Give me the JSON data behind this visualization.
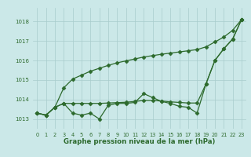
{
  "title": "Graphe pression niveau de la mer (hPa)",
  "background_color": "#cbe8e8",
  "grid_color": "#a8cccc",
  "line_color": "#2d6a2d",
  "xlim": [
    -0.5,
    23.5
  ],
  "ylim": [
    1012.5,
    1018.7
  ],
  "yticks": [
    1013,
    1014,
    1015,
    1016,
    1017,
    1018
  ],
  "xticks": [
    0,
    1,
    2,
    3,
    4,
    5,
    6,
    7,
    8,
    9,
    10,
    11,
    12,
    13,
    14,
    15,
    16,
    17,
    18,
    19,
    20,
    21,
    22,
    23
  ],
  "upper": [
    1013.3,
    1013.2,
    1013.6,
    1014.6,
    1015.05,
    1015.25,
    1015.45,
    1015.6,
    1015.75,
    1015.88,
    1015.98,
    1016.08,
    1016.18,
    1016.25,
    1016.32,
    1016.38,
    1016.44,
    1016.5,
    1016.56,
    1016.7,
    1016.95,
    1017.2,
    1017.55,
    1018.1
  ],
  "lower": [
    1013.3,
    1013.2,
    1013.6,
    1013.8,
    1013.3,
    1013.2,
    1013.3,
    1013.0,
    1013.7,
    1013.8,
    1013.8,
    1013.85,
    1014.3,
    1014.1,
    1013.9,
    1013.8,
    1013.65,
    1013.6,
    1013.3,
    1014.8,
    1016.0,
    1016.6,
    1017.1,
    1018.1
  ],
  "mid": [
    1013.3,
    1013.2,
    1013.6,
    1013.8,
    1013.8,
    1013.8,
    1013.8,
    1013.8,
    1013.82,
    1013.84,
    1013.86,
    1013.9,
    1013.95,
    1013.95,
    1013.92,
    1013.88,
    1013.85,
    1013.82,
    1013.82,
    1014.8,
    1016.0,
    1016.6,
    1017.1,
    1018.1
  ]
}
